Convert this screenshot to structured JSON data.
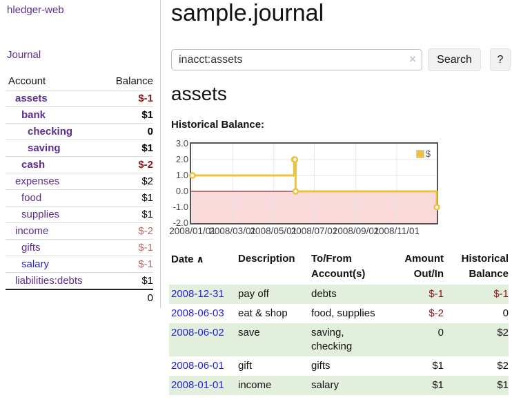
{
  "app": {
    "title": "hledger-web"
  },
  "colors": {
    "link_purple": "#5b2d91",
    "link_blue": "#2323d3",
    "negative_strong": "#8b1717",
    "negative_soft": "#b36a6a",
    "stripe_green": "#e3efdd",
    "chart_gold": "#edc240",
    "chart_negative_bg": "#f9d9d9",
    "chart_zero_line": "#8b0000",
    "chart_border": "#545454",
    "gridline": "#e6e6e6"
  },
  "sidebar": {
    "journal_link": "Journal",
    "accounts": {
      "col_account": "Account",
      "col_balance": "Balance",
      "rows": [
        {
          "name": "assets",
          "depth": 1,
          "balance": "$-1",
          "emphasis": true,
          "balance_style": "neg-strong",
          "link_style": "purple"
        },
        {
          "name": "bank",
          "depth": 2,
          "balance": "$1",
          "emphasis": true,
          "balance_style": "plain",
          "link_style": "purple"
        },
        {
          "name": "checking",
          "depth": 3,
          "balance": "0",
          "emphasis": true,
          "balance_style": "plain",
          "link_style": "purple"
        },
        {
          "name": "saving",
          "depth": 3,
          "balance": "$1",
          "emphasis": true,
          "balance_style": "plain",
          "link_style": "purple"
        },
        {
          "name": "cash",
          "depth": 2,
          "balance": "$-2",
          "emphasis": true,
          "balance_style": "neg-strong",
          "link_style": "purple"
        },
        {
          "name": "expenses",
          "depth": 1,
          "balance": "$2",
          "emphasis": false,
          "balance_style": "plain",
          "link_style": "purple"
        },
        {
          "name": "food",
          "depth": 2,
          "balance": "$1",
          "emphasis": false,
          "balance_style": "plain",
          "link_style": "purple"
        },
        {
          "name": "supplies",
          "depth": 2,
          "balance": "$1",
          "emphasis": false,
          "balance_style": "plain",
          "link_style": "purple"
        },
        {
          "name": "income",
          "depth": 1,
          "balance": "$-2",
          "emphasis": false,
          "balance_style": "neg-soft",
          "link_style": "purple"
        },
        {
          "name": "gifts",
          "depth": 2,
          "balance": "$-1",
          "emphasis": false,
          "balance_style": "neg-soft",
          "link_style": "purple"
        },
        {
          "name": "salary",
          "depth": 2,
          "balance": "$-1",
          "emphasis": false,
          "balance_style": "neg-soft",
          "link_style": "blue"
        },
        {
          "name": "liabilities:debts",
          "depth": 1,
          "balance": "$1",
          "emphasis": false,
          "balance_style": "plain",
          "link_style": "purple"
        }
      ],
      "total": "0"
    }
  },
  "main": {
    "title": "sample.journal",
    "search": {
      "value": "inacct:assets",
      "clear_icon": "×",
      "search_button": "Search",
      "help_button": "?"
    },
    "account_heading": "assets",
    "chart_heading": "Historical Balance:"
  },
  "chart_data": {
    "type": "line",
    "step": true,
    "series_name": "$",
    "legend_label": "$",
    "legend_position": "top-right",
    "grid": true,
    "x_start": "2008-01-01",
    "x_end": "2008-12-31",
    "ylim": [
      -2,
      3
    ],
    "y_tick_values": [
      3,
      2,
      1,
      0,
      -1,
      -2
    ],
    "y_tick_labels": [
      "3.0",
      "2.0",
      "1.0",
      "0.0",
      "-1.0",
      "-2.0"
    ],
    "x_tick_dates": [
      "2008-01-01",
      "2008-03-01",
      "2008-05-01",
      "2008-07-01",
      "2008-09-01",
      "2008-11-01"
    ],
    "x_tick_labels": [
      "2008/01/01",
      "2008/03/01",
      "2008/05/01",
      "2008/07/01",
      "2008/09/01",
      "2008/11/01"
    ],
    "points": [
      {
        "x": "2008-01-01",
        "y": 1
      },
      {
        "x": "2008-06-01",
        "y": 2
      },
      {
        "x": "2008-06-02",
        "y": 2
      },
      {
        "x": "2008-06-03",
        "y": 0
      },
      {
        "x": "2008-12-31",
        "y": -1
      }
    ]
  },
  "register": {
    "headers": {
      "date": "Date",
      "description": "Description",
      "accounts": "To/From Account(s)",
      "amount": "Amount Out/In",
      "balance": "Historical Balance"
    },
    "sort_icon": "∧",
    "rows": [
      {
        "date": "2008-12-31",
        "description": "pay off",
        "accounts": "debts",
        "amount": "$-1",
        "balance": "$-1",
        "amount_negative": true,
        "balance_negative": true
      },
      {
        "date": "2008-06-03",
        "description": "eat & shop",
        "accounts": "food, supplies",
        "amount": "$-2",
        "balance": "0",
        "amount_negative": true,
        "balance_negative": false
      },
      {
        "date": "2008-06-02",
        "description": "save",
        "accounts": "saving,\nchecking",
        "amount": "0",
        "balance": "$2",
        "amount_negative": false,
        "balance_negative": false
      },
      {
        "date": "2008-06-01",
        "description": "gift",
        "accounts": "gifts",
        "amount": "$1",
        "balance": "$2",
        "amount_negative": false,
        "balance_negative": false
      },
      {
        "date": "2008-01-01",
        "description": "income",
        "accounts": "salary",
        "amount": "$1",
        "balance": "$1",
        "amount_negative": false,
        "balance_negative": false
      }
    ]
  }
}
